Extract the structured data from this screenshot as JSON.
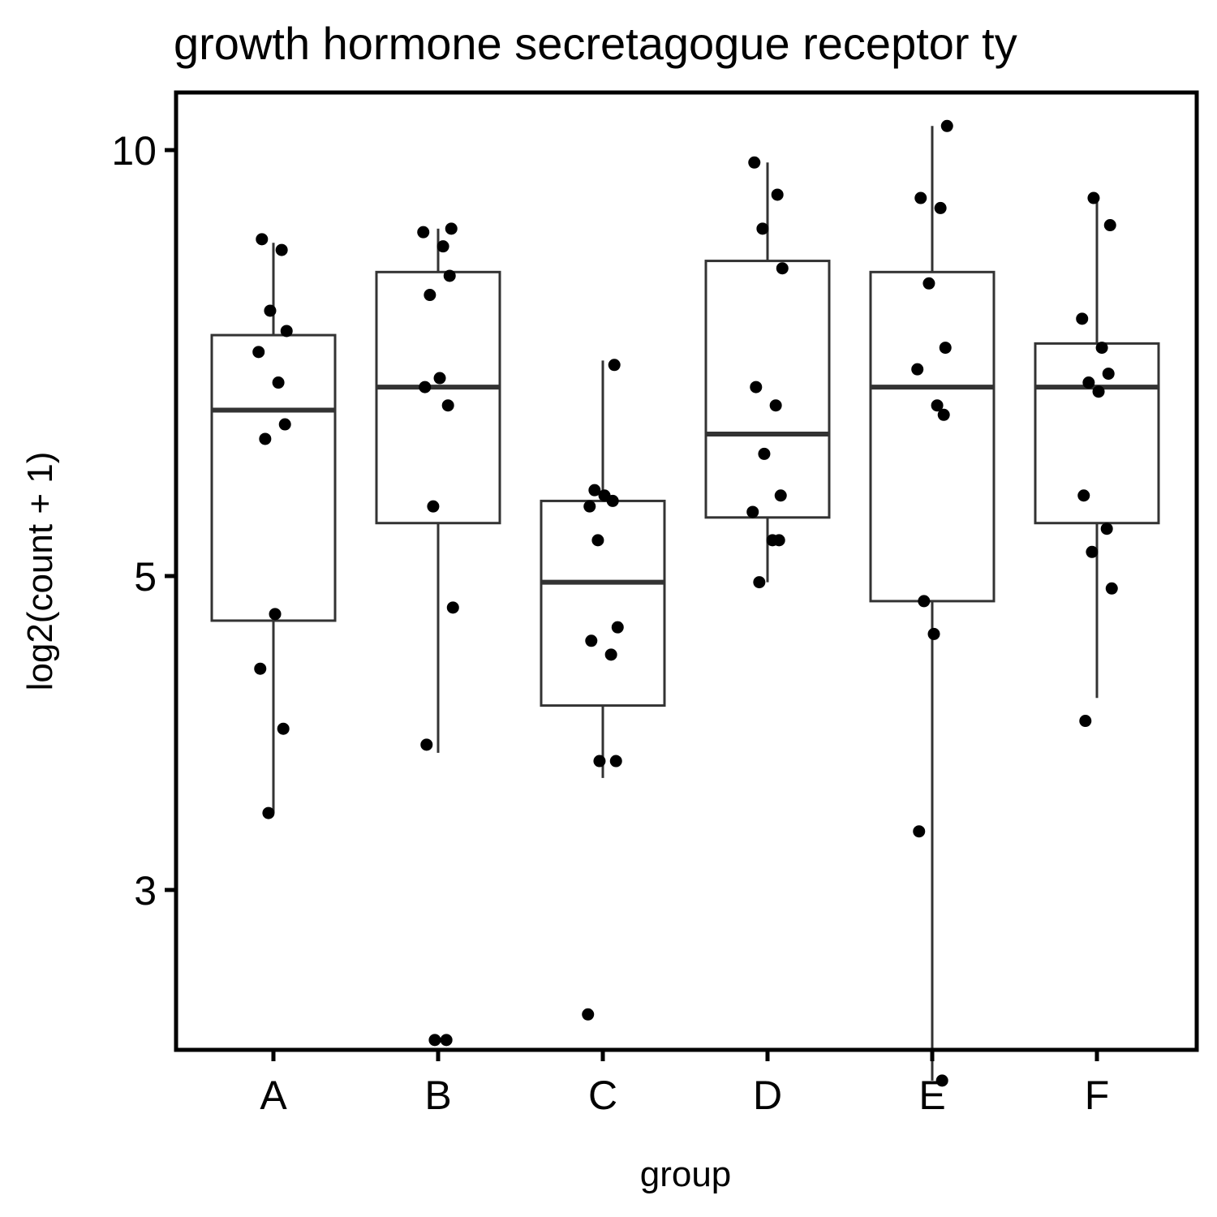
{
  "chart_data": {
    "type": "box",
    "title": "growth hormone secretagogue receptor ty",
    "xlabel": "group",
    "ylabel": "log2(count + 1)",
    "y_scale": "log",
    "y_ticks": [
      3,
      5,
      10
    ],
    "ylim": [
      2.15,
      10.4
    ],
    "grid": false,
    "legend": "none",
    "categories": [
      "A",
      "B",
      "C",
      "D",
      "E",
      "F"
    ],
    "boxes": [
      {
        "group": "A",
        "lower_whisker": 3.4,
        "q1": 4.65,
        "median": 6.55,
        "q3": 7.4,
        "upper_whisker": 8.6
      },
      {
        "group": "B",
        "lower_whisker": 3.75,
        "q1": 5.45,
        "median": 6.8,
        "q3": 8.2,
        "upper_whisker": 8.8
      },
      {
        "group": "C",
        "lower_whisker": 3.6,
        "q1": 4.05,
        "median": 4.95,
        "q3": 5.65,
        "upper_whisker": 7.1
      },
      {
        "group": "D",
        "lower_whisker": 4.95,
        "q1": 5.5,
        "median": 6.3,
        "q3": 8.35,
        "upper_whisker": 9.8
      },
      {
        "group": "E",
        "lower_whisker": 2.2,
        "q1": 4.8,
        "median": 6.8,
        "q3": 8.2,
        "upper_whisker": 10.4
      },
      {
        "group": "F",
        "lower_whisker": 4.1,
        "q1": 5.45,
        "median": 6.8,
        "q3": 7.3,
        "upper_whisker": 9.25
      }
    ],
    "points": [
      {
        "group": "A",
        "y": [
          8.65,
          8.5,
          7.7,
          7.45,
          7.2,
          6.85,
          6.4,
          6.25,
          4.7,
          4.3,
          3.9,
          3.4
        ]
      },
      {
        "group": "B",
        "y": [
          8.8,
          8.75,
          8.55,
          8.15,
          7.9,
          6.9,
          6.8,
          6.6,
          5.6,
          4.75,
          3.8,
          2.35,
          2.35
        ]
      },
      {
        "group": "C",
        "y": [
          7.05,
          5.75,
          5.7,
          5.6,
          5.65,
          5.3,
          4.6,
          4.5,
          4.4,
          3.7,
          3.7,
          2.45
        ]
      },
      {
        "group": "D",
        "y": [
          9.8,
          9.3,
          8.8,
          8.25,
          6.8,
          6.6,
          6.1,
          5.7,
          5.55,
          5.3,
          5.3,
          4.95
        ]
      },
      {
        "group": "E",
        "y": [
          10.4,
          9.25,
          9.1,
          8.05,
          7.25,
          7.0,
          6.6,
          6.5,
          4.8,
          4.55,
          3.3,
          2.2
        ]
      },
      {
        "group": "F",
        "y": [
          9.25,
          8.85,
          7.6,
          7.25,
          6.95,
          6.85,
          6.75,
          5.7,
          5.4,
          5.2,
          4.9,
          3.95
        ]
      }
    ]
  }
}
